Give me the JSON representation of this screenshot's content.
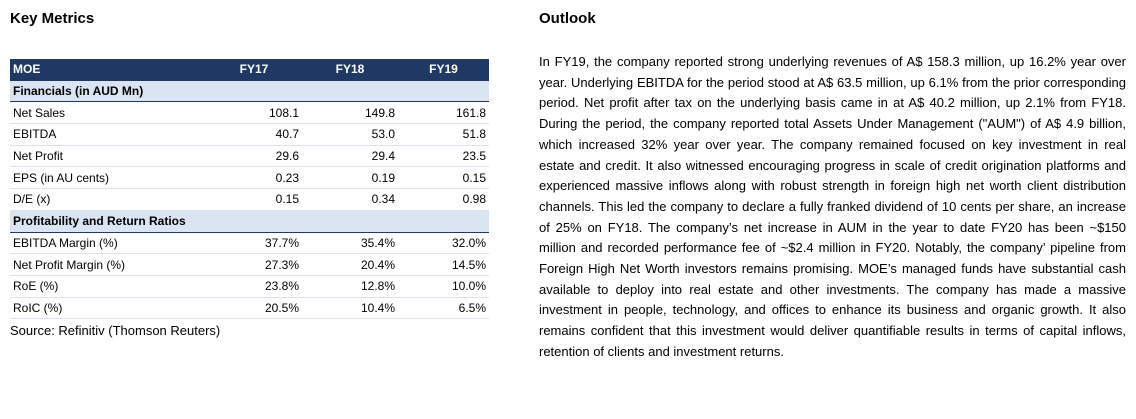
{
  "left": {
    "title": "Key Metrics",
    "table": {
      "headers": [
        "MOE",
        "FY17",
        "FY18",
        "FY19"
      ],
      "sections": [
        {
          "label": "Financials (in AUD Mn)",
          "rows": [
            {
              "label": "Net Sales",
              "values": [
                "108.1",
                "149.8",
                "161.8"
              ]
            },
            {
              "label": "EBITDA",
              "values": [
                "40.7",
                "53.0",
                "51.8"
              ]
            },
            {
              "label": "Net Profit",
              "values": [
                "29.6",
                "29.4",
                "23.5"
              ]
            },
            {
              "label": "EPS (in AU cents)",
              "values": [
                "0.23",
                "0.19",
                "0.15"
              ]
            },
            {
              "label": "D/E (x)",
              "values": [
                "0.15",
                "0.34",
                "0.98"
              ]
            }
          ]
        },
        {
          "label": "Profitability and Return Ratios",
          "rows": [
            {
              "label": "EBITDA Margin (%)",
              "values": [
                "37.7%",
                "35.4%",
                "32.0%"
              ]
            },
            {
              "label": "Net Profit Margin (%)",
              "values": [
                "27.3%",
                "20.4%",
                "14.5%"
              ]
            },
            {
              "label": "RoE (%)",
              "values": [
                "23.8%",
                "12.8%",
                "10.0%"
              ]
            },
            {
              "label": "RoIC (%)",
              "values": [
                "20.5%",
                "10.4%",
                "6.5%"
              ]
            }
          ]
        }
      ]
    },
    "source": "Source: Refinitiv (Thomson Reuters)"
  },
  "right": {
    "title": "Outlook",
    "paragraph": "In FY19, the company reported strong underlying revenues of A$ 158.3 million, up 16.2% year over year. Underlying EBITDA for the period stood at A$ 63.5 million, up 6.1% from the prior corresponding period. Net profit after tax on the underlying basis came in at A$ 40.2 million, up 2.1% from FY18. During the period, the company reported total Assets Under Management (\"AUM\") of A$ 4.9 billion, which increased 32% year over year. The company remained focused on key investment in real estate and credit. It also witnessed encouraging progress in scale of credit origination platforms and experienced massive inflows along with robust strength in foreign high net worth client distribution channels. This led the company to declare a fully franked dividend of 10 cents per share, an increase of 25% on FY18. The company’s net increase in AUM in the year to date FY20 has been ~$150 million and recorded performance fee of ~$2.4 million in FY20. Notably, the company’ pipeline from Foreign High Net Worth investors remains promising. MOE’s managed funds have substantial cash available to deploy into real estate and other investments. The company has made a massive investment in people, technology, and offices to enhance its business and organic growth. It also remains confident that this investment would deliver quantifiable results in terms of capital inflows, retention of clients and investment returns."
  }
}
